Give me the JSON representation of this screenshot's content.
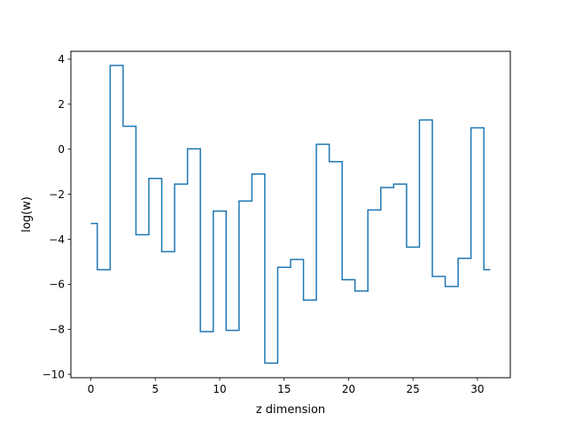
{
  "chart_data": {
    "type": "line",
    "drawstyle": "steps-mid",
    "title": "",
    "xlabel": "z dimension",
    "ylabel": "log(w)",
    "xlim": [
      -1.55,
      32.55
    ],
    "ylim": [
      -10.15,
      4.35
    ],
    "xticks": [
      0,
      5,
      10,
      15,
      20,
      25,
      30
    ],
    "xtick_labels": [
      "0",
      "5",
      "10",
      "15",
      "20",
      "25",
      "30"
    ],
    "yticks": [
      -10,
      -8,
      -6,
      -4,
      -2,
      0,
      2,
      4
    ],
    "ytick_labels": [
      "−10",
      "−8",
      "−6",
      "−4",
      "−2",
      "0",
      "2",
      "4"
    ],
    "grid": false,
    "legend": "none",
    "series": [
      {
        "color": "#1f77b4",
        "x": [
          0,
          1,
          2,
          3,
          4,
          5,
          6,
          7,
          8,
          9,
          10,
          11,
          12,
          13,
          14,
          15,
          16,
          17,
          18,
          19,
          20,
          21,
          22,
          23,
          24,
          25,
          26,
          27,
          28,
          29,
          30,
          31
        ],
        "y": [
          -3.3,
          -5.35,
          3.72,
          1.02,
          -3.8,
          -1.3,
          -4.55,
          -1.55,
          0.02,
          -8.1,
          -2.75,
          -8.05,
          -2.3,
          -1.1,
          -9.5,
          -5.25,
          -4.9,
          -6.7,
          0.22,
          -0.55,
          -5.8,
          -6.3,
          -2.7,
          -1.7,
          -1.55,
          -4.35,
          1.3,
          -5.65,
          -6.1,
          -4.85,
          0.95,
          -5.35
        ]
      }
    ]
  }
}
